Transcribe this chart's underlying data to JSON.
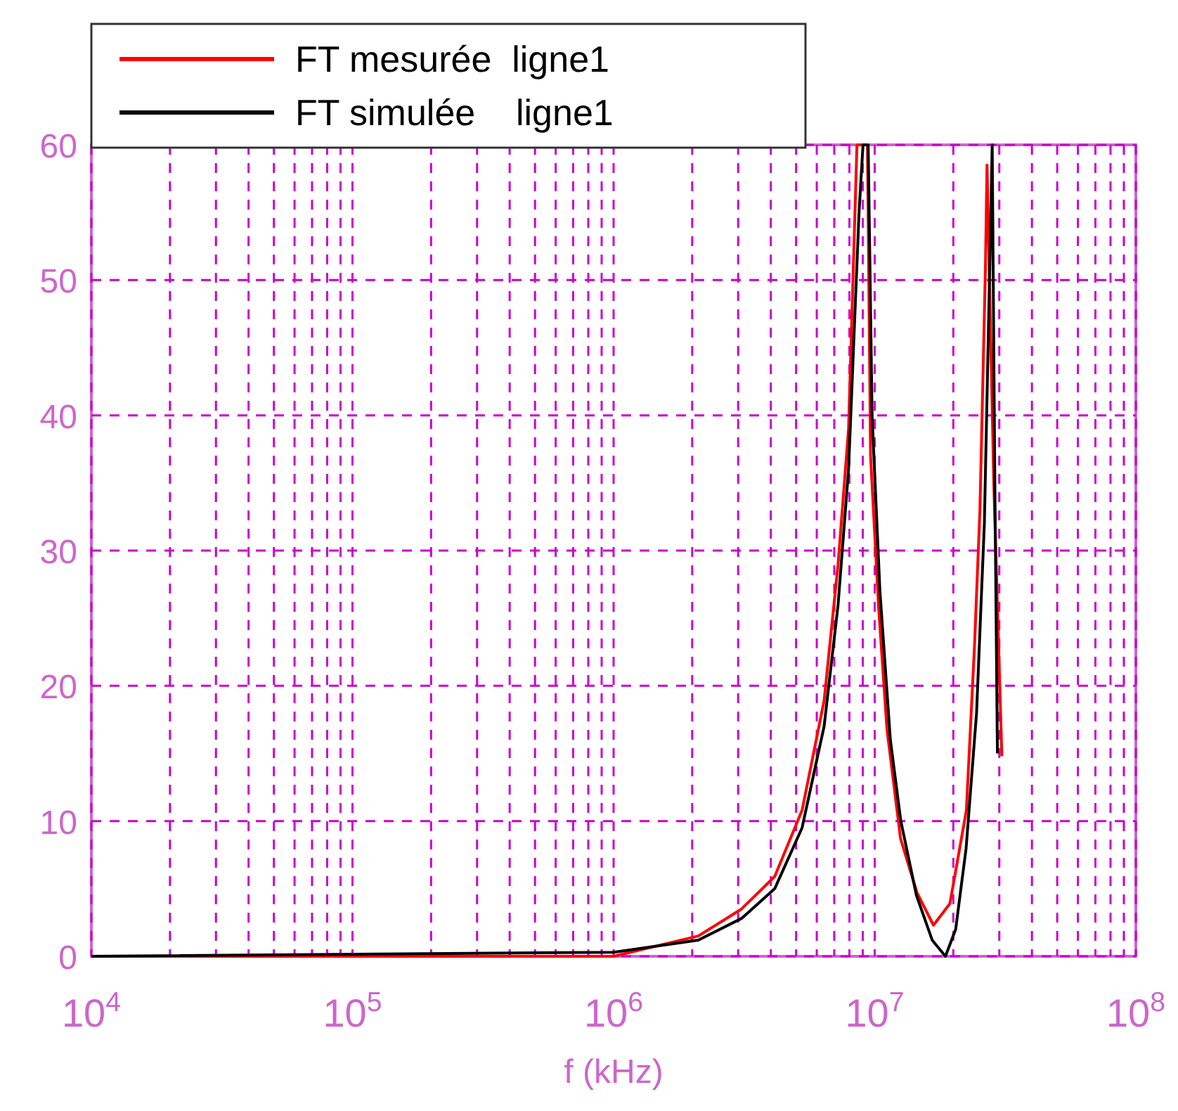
{
  "chart_data": {
    "type": "line",
    "xlabel": "f (kHz)",
    "log": "x",
    "grid": true,
    "legend": "top left",
    "line_style": "solid",
    "xlim": [
      10000,
      100000000
    ],
    "xticks": [
      {
        "value": 10000,
        "label": "10$^{4}$"
      },
      {
        "value": 100000,
        "label": "10$^{5}$"
      },
      {
        "value": 1000000,
        "label": "10$^{6}$"
      },
      {
        "value": 10000000,
        "label": "10$^{7}$"
      },
      {
        "value": 100000000,
        "label": "10$^{8}$"
      }
    ],
    "ylim": [
      0,
      60
    ],
    "yticks": [
      0,
      10,
      20,
      30,
      40,
      50,
      60
    ],
    "series": [
      {
        "name": "FT mesurée  ligne1",
        "color": "#ff0000",
        "x": [
          10000,
          1000000,
          2110000,
          3090000,
          4140000,
          5270000,
          6400000,
          7240000,
          7940000,
          8550000,
          9380000,
          9640000,
          10350000,
          11140000,
          12560000,
          14520000,
          16790000,
          19410000,
          22440000,
          24100000,
          25290000,
          26550000,
          26920000,
          28580000,
          30690000
        ],
        "values": [
          0,
          0,
          1.5,
          3.5,
          5.9,
          10.8,
          18.9,
          29,
          39,
          60,
          60,
          37,
          25.8,
          16.8,
          8.7,
          4.7,
          2.3,
          3.9,
          10.8,
          22.9,
          33,
          51,
          58.5,
          35,
          14.8
        ]
      },
      {
        "name": "FT simulée    ligne1",
        "color": "#000000",
        "x": [
          10000,
          1000000,
          2110000,
          3090000,
          4140000,
          5270000,
          6400000,
          7240000,
          7940000,
          8710000,
          9020000,
          9440000,
          9770000,
          10470000,
          11480000,
          12590000,
          14450000,
          16600000,
          18660000,
          20420000,
          22390000,
          24550000,
          26300000,
          27860000,
          28180000,
          28840000,
          29510000
        ],
        "values": [
          0,
          0.3,
          1.2,
          2.8,
          5,
          9.5,
          17,
          26,
          36,
          55,
          60,
          60,
          40,
          27,
          16,
          10,
          4.5,
          1.2,
          0,
          2,
          8,
          18,
          32,
          55,
          60,
          35,
          15
        ]
      }
    ]
  }
}
